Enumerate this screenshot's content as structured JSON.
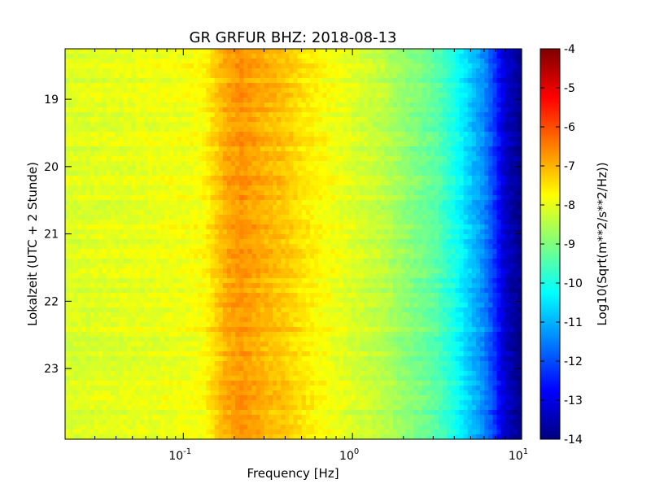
{
  "chart_data": {
    "type": "heatmap",
    "title": "GR GRFUR BHZ: 2018-08-13",
    "xlabel": "Frequency [Hz]",
    "ylabel": "Lokalzeit (UTC + 2 Stunde)",
    "x_scale": "log",
    "xlim": [
      0.02,
      10
    ],
    "x_ticks": [
      {
        "value": 0.1,
        "base": "10",
        "exp": "-1"
      },
      {
        "value": 1,
        "base": "10",
        "exp": "0"
      },
      {
        "value": 10,
        "base": "10",
        "exp": "1"
      }
    ],
    "ylim": [
      18.25,
      24.05
    ],
    "y_inverted": true,
    "y_ticks": [
      "19",
      "20",
      "21",
      "22",
      "23"
    ],
    "colorbar": {
      "label": "Log10(Sqrt(m**2/s**2/Hz))",
      "range": [
        -14,
        -4
      ],
      "ticks": [
        "-4",
        "-5",
        "-6",
        "-7",
        "-8",
        "-9",
        "-10",
        "-11",
        "-12",
        "-13",
        "-14"
      ],
      "colormap": "jet"
    },
    "spectrum_profile": {
      "frequency_hz": [
        0.02,
        0.05,
        0.1,
        0.13,
        0.15,
        0.18,
        0.22,
        0.3,
        0.4,
        0.5,
        0.7,
        1.0,
        1.5,
        2.0,
        3.0,
        4.0,
        5.0,
        6.0,
        7.0,
        8.0,
        10.0
      ],
      "level": [
        -8.1,
        -8.0,
        -7.9,
        -7.8,
        -7.4,
        -6.9,
        -6.7,
        -7.0,
        -7.2,
        -7.5,
        -7.8,
        -8.1,
        -8.4,
        -8.8,
        -9.3,
        -10.0,
        -10.8,
        -11.4,
        -12.3,
        -13.3,
        -13.9
      ]
    },
    "grid": false
  }
}
